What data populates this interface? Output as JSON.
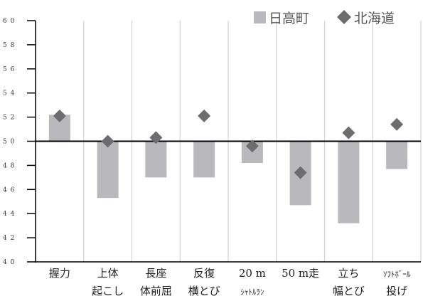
{
  "chart_data": {
    "type": "bar",
    "baseline": 50,
    "ylim": [
      40,
      60
    ],
    "yticks": [
      "6 0",
      "5 8",
      "5 6",
      "5 4",
      "5 2",
      "5 0",
      "4 8",
      "4 6",
      "4 4",
      "4 2",
      "4 0"
    ],
    "ytick_values": [
      60,
      58,
      56,
      54,
      52,
      50,
      48,
      46,
      44,
      42,
      40
    ],
    "categories": [
      {
        "line1": "握力",
        "line2": ""
      },
      {
        "line1": "上体",
        "line2": "起こし"
      },
      {
        "line1": "長座",
        "line2": "体前屈"
      },
      {
        "line1": "反復",
        "line2": "横とび"
      },
      {
        "line1": "20 m",
        "line2": "ｼｬﾄﾙﾗﾝ"
      },
      {
        "line1": "50 m走",
        "line2": ""
      },
      {
        "line1": "立ち",
        "line2": "幅とび"
      },
      {
        "line1": "ｿﾌﾄﾎﾞｰﾙ",
        "line2": "投げ"
      }
    ],
    "series": [
      {
        "name": "日高町",
        "kind": "bar",
        "color": "#b9b9bd",
        "values": [
          52.2,
          45.3,
          47.0,
          47.0,
          48.2,
          44.7,
          43.2,
          47.7
        ]
      },
      {
        "name": "北海道",
        "kind": "marker",
        "marker": "diamond",
        "color": "#6d6d6d",
        "values": [
          52.1,
          50.0,
          50.3,
          52.1,
          49.6,
          47.4,
          50.7,
          51.4
        ]
      }
    ],
    "grid": true,
    "legend_position": "top-right"
  },
  "legend": {
    "hidaka": "日高町",
    "hokkaido": "北海道"
  }
}
